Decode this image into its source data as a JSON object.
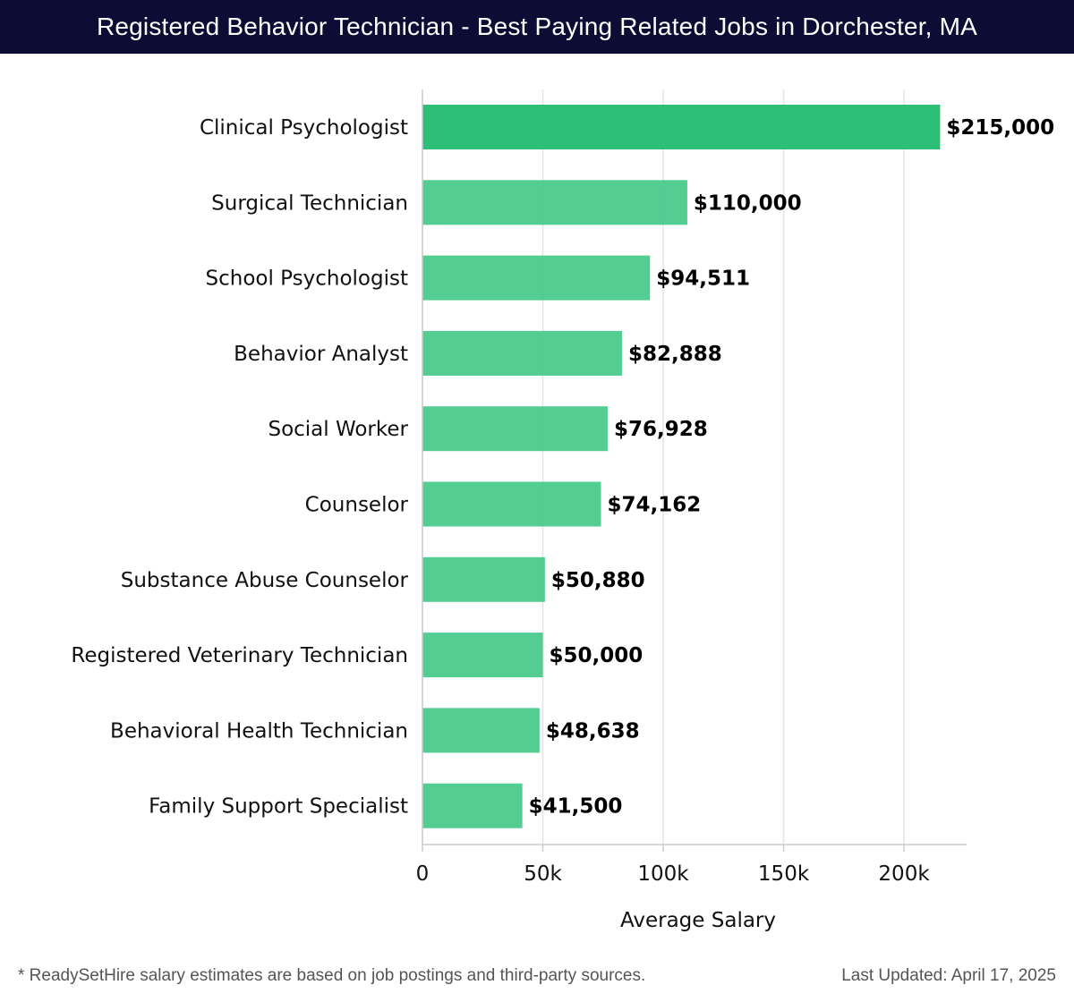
{
  "header": {
    "title": "Registered Behavior Technician - Best Paying Related Jobs in Dorchester, MA"
  },
  "chart_data": {
    "type": "bar",
    "orientation": "horizontal",
    "title": "Registered Behavior Technician - Best Paying Related Jobs in Dorchester, MA",
    "xlabel": "Average Salary",
    "ylabel": "",
    "xlim": [
      0,
      226000
    ],
    "xticks": [
      0,
      50000,
      100000,
      150000,
      200000
    ],
    "xtick_labels": [
      "0",
      "50k",
      "100k",
      "150k",
      "200k"
    ],
    "grid": true,
    "categories": [
      "Clinical Psychologist",
      "Surgical Technician",
      "School Psychologist",
      "Behavior Analyst",
      "Social Worker",
      "Counselor",
      "Substance Abuse Counselor",
      "Registered Veterinary Technician",
      "Behavioral Health Technician",
      "Family Support Specialist"
    ],
    "values": [
      215000,
      110000,
      94511,
      82888,
      76928,
      74162,
      50880,
      50000,
      48638,
      41500
    ],
    "value_labels": [
      "$215,000",
      "$110,000",
      "$94,511",
      "$82,888",
      "$76,928",
      "$74,162",
      "$50,880",
      "$50,000",
      "$48,638",
      "$41,500"
    ],
    "colors": {
      "top_bar": "#2dbe78",
      "bars": "#45c98a",
      "gridline": "#e4e4e4",
      "axis": "#cccccc"
    }
  },
  "footer": {
    "note": "* ReadySetHire salary estimates are based on job postings and third-party sources.",
    "updated": "Last Updated: April 17, 2025"
  }
}
